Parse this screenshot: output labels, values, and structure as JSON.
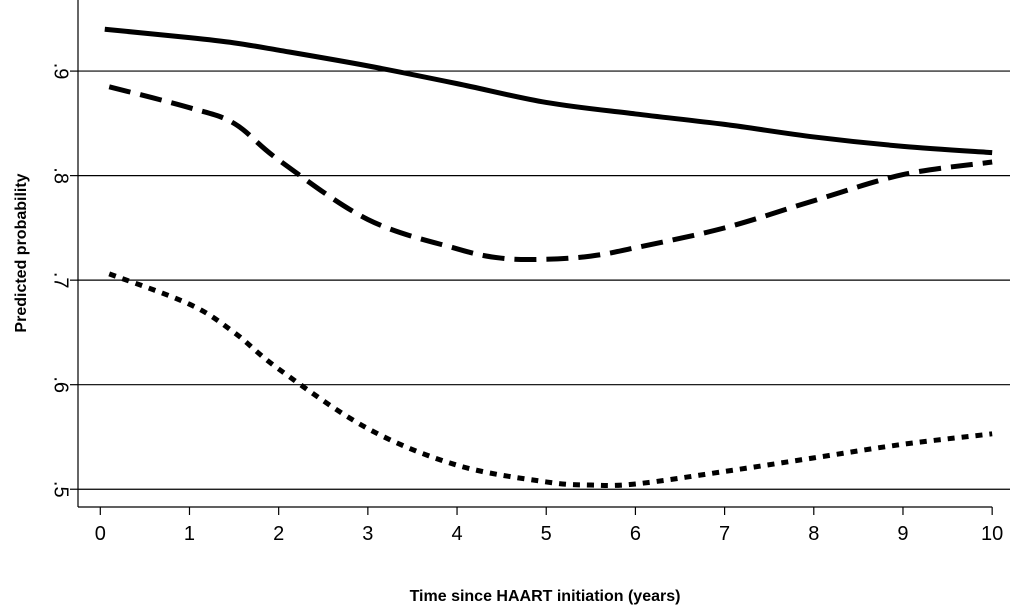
{
  "chart_data": {
    "type": "line",
    "xlabel": "Time since HAART initiation (years)",
    "ylabel": "Predicted probability",
    "xlim": [
      -0.25,
      10.2
    ],
    "ylim": [
      0.483,
      0.968
    ],
    "xticks": [
      0,
      1,
      2,
      3,
      4,
      5,
      6,
      7,
      8,
      9,
      10
    ],
    "yticks": [
      {
        "value": 0.5,
        "label": ".5"
      },
      {
        "value": 0.6,
        "label": ".6"
      },
      {
        "value": 0.7,
        "label": ".7"
      },
      {
        "value": 0.8,
        "label": ".8"
      },
      {
        "value": 0.9,
        "label": ".9"
      }
    ],
    "grid": true,
    "series": [
      {
        "color": "#000000",
        "style": "solid",
        "x": [
          0.05,
          1,
          1.5,
          2,
          3,
          4,
          5,
          6,
          7,
          8,
          9,
          10
        ],
        "values": [
          0.94,
          0.932,
          0.927,
          0.92,
          0.905,
          0.888,
          0.87,
          0.859,
          0.849,
          0.837,
          0.828,
          0.822
        ]
      },
      {
        "color": "#000000",
        "style": "dashed",
        "x": [
          0.1,
          1,
          1.5,
          2,
          3,
          4,
          4.5,
          5,
          5.5,
          6,
          7,
          8,
          9,
          10
        ],
        "values": [
          0.885,
          0.865,
          0.85,
          0.815,
          0.758,
          0.73,
          0.721,
          0.72,
          0.723,
          0.731,
          0.75,
          0.776,
          0.801,
          0.813
        ]
      },
      {
        "color": "#000000",
        "style": "dotted",
        "x": [
          0.1,
          1,
          1.5,
          2,
          3,
          4,
          5,
          5.5,
          6,
          7,
          8,
          9,
          10
        ],
        "values": [
          0.706,
          0.677,
          0.65,
          0.615,
          0.558,
          0.523,
          0.507,
          0.504,
          0.505,
          0.517,
          0.53,
          0.543,
          0.553
        ]
      }
    ]
  }
}
